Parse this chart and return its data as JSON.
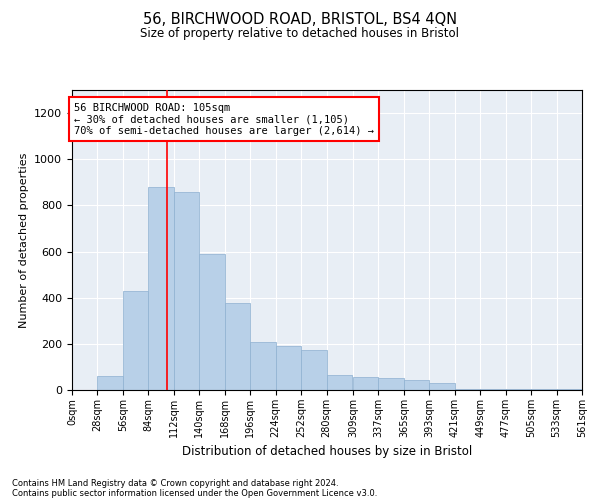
{
  "title": "56, BIRCHWOOD ROAD, BRISTOL, BS4 4QN",
  "subtitle": "Size of property relative to detached houses in Bristol",
  "xlabel": "Distribution of detached houses by size in Bristol",
  "ylabel": "Number of detached properties",
  "bar_color": "#b8d0e8",
  "bar_edge_color": "#8db0d0",
  "bg_color": "#e8eef5",
  "grid_color": "#ffffff",
  "red_line_x": 105,
  "annotation_title": "56 BIRCHWOOD ROAD: 105sqm",
  "annotation_line1": "← 30% of detached houses are smaller (1,105)",
  "annotation_line2": "70% of semi-detached houses are larger (2,614) →",
  "bins": [
    0,
    28,
    56,
    84,
    112,
    140,
    168,
    196,
    224,
    252,
    280,
    309,
    337,
    365,
    393,
    421,
    449,
    477,
    505,
    533,
    561
  ],
  "counts": [
    2,
    60,
    430,
    880,
    860,
    590,
    375,
    210,
    190,
    175,
    65,
    55,
    50,
    45,
    30,
    5,
    5,
    5,
    5,
    5
  ],
  "ylim": [
    0,
    1300
  ],
  "yticks": [
    0,
    200,
    400,
    600,
    800,
    1000,
    1200
  ],
  "footer_line1": "Contains HM Land Registry data © Crown copyright and database right 2024.",
  "footer_line2": "Contains public sector information licensed under the Open Government Licence v3.0."
}
